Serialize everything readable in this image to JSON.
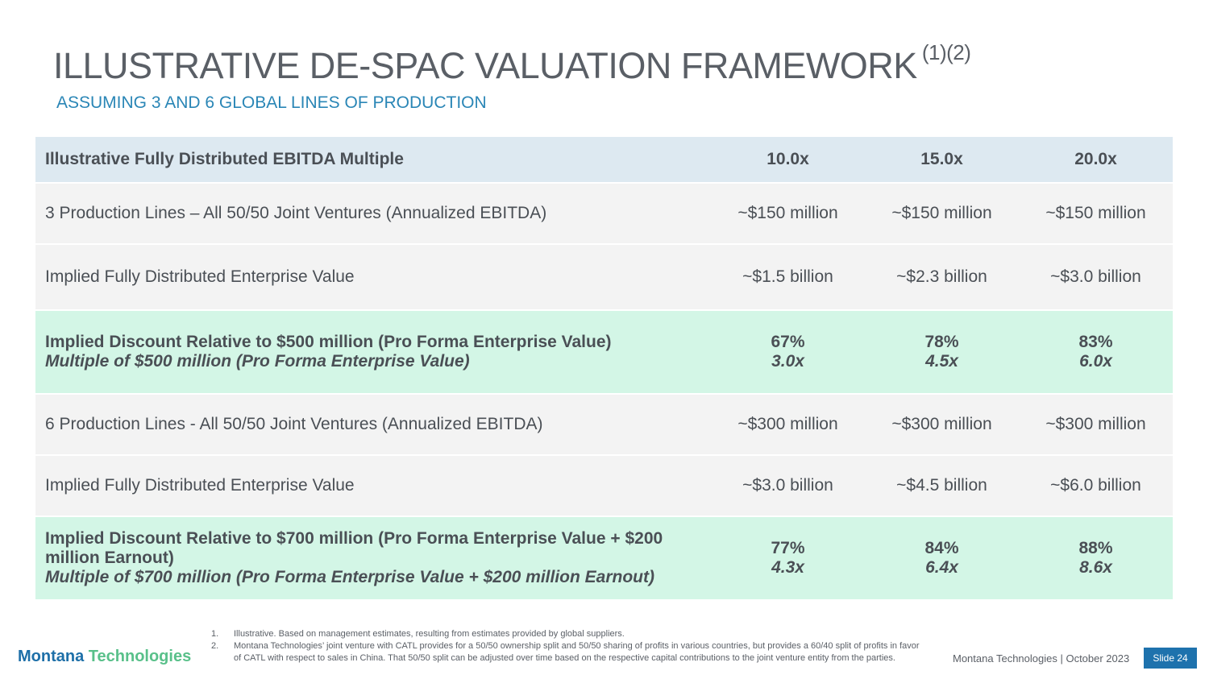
{
  "header": {
    "title": "ILLUSTRATIVE DE-SPAC VALUATION FRAMEWORK",
    "title_sup": "(1)(2)",
    "subtitle": "ASSUMING 3 AND 6 GLOBAL LINES OF PRODUCTION"
  },
  "table": {
    "header": [
      "Illustrative Fully Distributed EBITDA Multiple",
      "10.0x",
      "15.0x",
      "20.0x"
    ],
    "rows": [
      {
        "label": "3 Production Lines – All 50/50 Joint Ventures (Annualized EBITDA)",
        "values": [
          "~$150 million",
          "~$150 million",
          "~$150 million"
        ]
      },
      {
        "label": "Implied Fully Distributed Enterprise Value",
        "values": [
          "~$1.5 billion",
          "~$2.3 billion",
          "~$3.0 billion"
        ]
      },
      {
        "label": "Implied Discount Relative to $500 million (Pro Forma Enterprise Value)",
        "label_italic": "Multiple of $500 million (Pro Forma Enterprise Value)",
        "values": [
          "67%",
          "78%",
          "83%"
        ],
        "values_italic": [
          "3.0x",
          "4.5x",
          "6.0x"
        ]
      },
      {
        "label": "6 Production Lines - All 50/50 Joint Ventures (Annualized EBITDA)",
        "values": [
          "~$300 million",
          "~$300 million",
          "~$300 million"
        ]
      },
      {
        "label": "Implied Fully Distributed Enterprise Value",
        "values": [
          "~$3.0 billion",
          "~$4.5 billion",
          "~$6.0 billion"
        ]
      },
      {
        "label": "Implied Discount Relative to $700 million (Pro Forma Enterprise Value + $200 million Earnout)",
        "label_italic": "Multiple of $700 million (Pro Forma Enterprise Value + $200 million Earnout)",
        "values": [
          "77%",
          "84%",
          "88%"
        ],
        "values_italic": [
          "4.3x",
          "6.4x",
          "8.6x"
        ]
      }
    ]
  },
  "footnotes": [
    {
      "num": "1.",
      "text": "Illustrative. Based on management estimates, resulting from estimates provided by global suppliers."
    },
    {
      "num": "2.",
      "text": "Montana Technologies’ joint venture with CATL provides for a 50/50 ownership split and 50/50 sharing of profits in various countries, but provides a 60/40 split of profits in favor of CATL with respect to sales in China.  That 50/50 split can be adjusted over time based on the respective capital contributions to the joint venture entity from the parties."
    }
  ],
  "footer": {
    "logo_part1": "Montana",
    "logo_part2": "Technologies",
    "right_text": "Montana Technologies  |  October 2023",
    "slide": "Slide 24"
  },
  "colors": {
    "header_row": "#dde9f1",
    "plain_row": "#f3f3f3",
    "highlight_row": "#d3f6e6",
    "subtitle": "#2a86b6",
    "slide_badge": "#1e72ad"
  }
}
